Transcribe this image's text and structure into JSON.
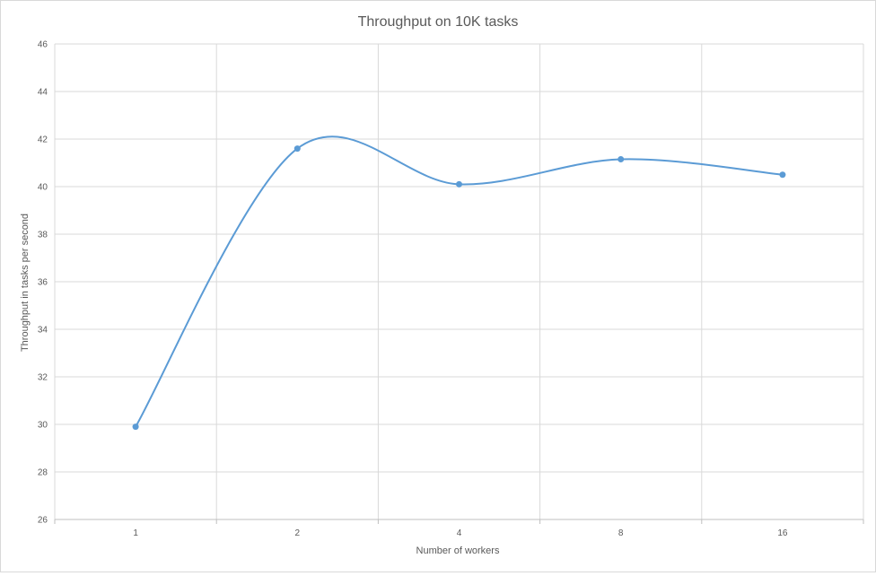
{
  "chart_data": {
    "type": "line",
    "title": "Throughput on 10K tasks",
    "xlabel": "Number  of workers",
    "ylabel": "Throughput in tasks per second",
    "categories": [
      "1",
      "2",
      "4",
      "8",
      "16"
    ],
    "series": [
      {
        "values": [
          29.9,
          41.6,
          40.1,
          41.15,
          40.5
        ]
      }
    ],
    "ylim": [
      26,
      46
    ],
    "yticks": [
      26,
      28,
      30,
      32,
      34,
      36,
      38,
      40,
      42,
      44,
      46
    ],
    "smooth": true,
    "grid": {
      "horizontal": true,
      "vertical": true
    },
    "legend": "none",
    "colors": {
      "line": "#5b9bd5",
      "grid": "#d9d9d9",
      "axis": "#bfbfbf",
      "text": "#595959"
    }
  }
}
